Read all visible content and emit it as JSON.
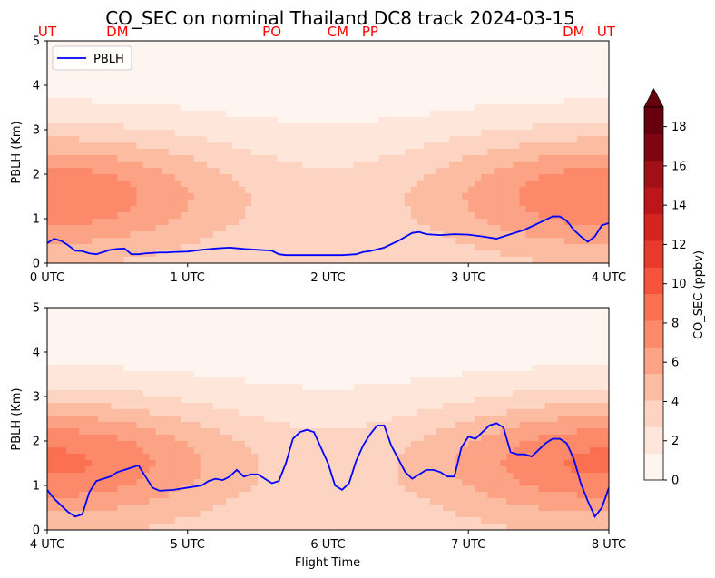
{
  "title": "CO_SEC on nominal Thailand DC8 track 2024-03-15",
  "location_markers": [
    "UT",
    "DM",
    "PO",
    "CM",
    "PP",
    "DM",
    "UT"
  ],
  "location_marker_times": [
    0.0,
    0.5,
    1.6,
    2.07,
    2.3,
    3.75,
    3.98
  ],
  "colors": {
    "pblh_line": "#0000ff",
    "location_marker": "#ff0000",
    "colormap": [
      "#fff5f0",
      "#fee6da",
      "#fdd4c2",
      "#fcbca2",
      "#fca285",
      "#fc8a6a",
      "#fb7050",
      "#f5533b",
      "#e83a2c",
      "#d42420",
      "#bc151a",
      "#a11016",
      "#7f0610",
      "#67000d"
    ]
  },
  "colorbar": {
    "label": "CO_SEC (ppbv)",
    "ticks": [
      "0",
      "2",
      "4",
      "6",
      "8",
      "10",
      "12",
      "14",
      "16",
      "18"
    ],
    "min": 0,
    "max": 19
  },
  "chart_data": [
    {
      "type": "line",
      "panel": "top",
      "ylabel": "PBLH (Km)",
      "xlabel": "",
      "xlim": [
        0,
        4
      ],
      "ylim": [
        0,
        5
      ],
      "xticklabels": [
        "0 UTC",
        "1 UTC",
        "2 UTC",
        "3 UTC",
        "4 UTC"
      ],
      "yticklabels": [
        "0",
        "1",
        "2",
        "3",
        "4",
        "5"
      ],
      "legend": {
        "placement": "top-left",
        "entries": [
          "PBLH"
        ]
      },
      "series": [
        {
          "name": "PBLH",
          "x": [
            0.0,
            0.05,
            0.1,
            0.15,
            0.2,
            0.25,
            0.3,
            0.35,
            0.4,
            0.45,
            0.5,
            0.55,
            0.6,
            0.65,
            0.7,
            0.75,
            0.8,
            0.85,
            0.9,
            1.0,
            1.1,
            1.2,
            1.3,
            1.4,
            1.5,
            1.6,
            1.65,
            1.7,
            1.75,
            1.8,
            1.9,
            2.0,
            2.1,
            2.2,
            2.25,
            2.3,
            2.4,
            2.5,
            2.6,
            2.65,
            2.7,
            2.8,
            2.9,
            3.0,
            3.1,
            3.2,
            3.3,
            3.4,
            3.5,
            3.6,
            3.65,
            3.7,
            3.75,
            3.8,
            3.85,
            3.9,
            3.95,
            4.0
          ],
          "y": [
            0.45,
            0.55,
            0.5,
            0.4,
            0.28,
            0.27,
            0.22,
            0.2,
            0.25,
            0.3,
            0.32,
            0.33,
            0.2,
            0.2,
            0.22,
            0.23,
            0.24,
            0.24,
            0.25,
            0.26,
            0.3,
            0.33,
            0.35,
            0.32,
            0.3,
            0.28,
            0.2,
            0.18,
            0.18,
            0.18,
            0.18,
            0.18,
            0.18,
            0.2,
            0.25,
            0.27,
            0.35,
            0.5,
            0.68,
            0.7,
            0.65,
            0.63,
            0.65,
            0.64,
            0.6,
            0.55,
            0.65,
            0.75,
            0.9,
            1.05,
            1.05,
            0.95,
            0.75,
            0.6,
            0.48,
            0.6,
            0.85,
            0.9
          ]
        }
      ]
    },
    {
      "type": "line",
      "panel": "bottom",
      "ylabel": "PBLH (Km)",
      "xlabel": "Flight Time",
      "xlim": [
        4,
        8
      ],
      "ylim": [
        0,
        5
      ],
      "xticklabels": [
        "4 UTC",
        "5 UTC",
        "6 UTC",
        "7 UTC",
        "8 UTC"
      ],
      "yticklabels": [
        "0",
        "1",
        "2",
        "3",
        "4",
        "5"
      ],
      "series": [
        {
          "name": "PBLH",
          "x": [
            4.0,
            4.05,
            4.1,
            4.15,
            4.2,
            4.25,
            4.3,
            4.35,
            4.4,
            4.45,
            4.5,
            4.55,
            4.6,
            4.65,
            4.7,
            4.75,
            4.8,
            4.9,
            5.0,
            5.1,
            5.15,
            5.2,
            5.25,
            5.3,
            5.35,
            5.4,
            5.45,
            5.5,
            5.55,
            5.6,
            5.65,
            5.7,
            5.75,
            5.8,
            5.85,
            5.9,
            5.95,
            6.0,
            6.05,
            6.1,
            6.15,
            6.2,
            6.25,
            6.3,
            6.35,
            6.4,
            6.45,
            6.5,
            6.55,
            6.6,
            6.65,
            6.7,
            6.75,
            6.8,
            6.85,
            6.9,
            6.95,
            7.0,
            7.05,
            7.1,
            7.15,
            7.2,
            7.25,
            7.3,
            7.35,
            7.4,
            7.45,
            7.5,
            7.55,
            7.6,
            7.65,
            7.7,
            7.75,
            7.8,
            7.85,
            7.9,
            7.95,
            8.0
          ],
          "y": [
            0.9,
            0.7,
            0.55,
            0.4,
            0.3,
            0.35,
            0.85,
            1.1,
            1.15,
            1.2,
            1.3,
            1.35,
            1.4,
            1.45,
            1.2,
            0.95,
            0.88,
            0.9,
            0.95,
            1.0,
            1.1,
            1.15,
            1.12,
            1.2,
            1.35,
            1.2,
            1.25,
            1.25,
            1.15,
            1.05,
            1.1,
            1.5,
            2.05,
            2.2,
            2.25,
            2.2,
            1.85,
            1.5,
            1.0,
            0.9,
            1.05,
            1.55,
            1.9,
            2.15,
            2.35,
            2.35,
            1.9,
            1.6,
            1.3,
            1.15,
            1.25,
            1.35,
            1.35,
            1.3,
            1.2,
            1.2,
            1.85,
            2.1,
            2.05,
            2.2,
            2.35,
            2.4,
            2.3,
            1.75,
            1.7,
            1.7,
            1.65,
            1.8,
            1.95,
            2.05,
            2.05,
            1.95,
            1.6,
            1.05,
            0.65,
            0.3,
            0.5,
            0.95
          ]
        }
      ]
    }
  ]
}
